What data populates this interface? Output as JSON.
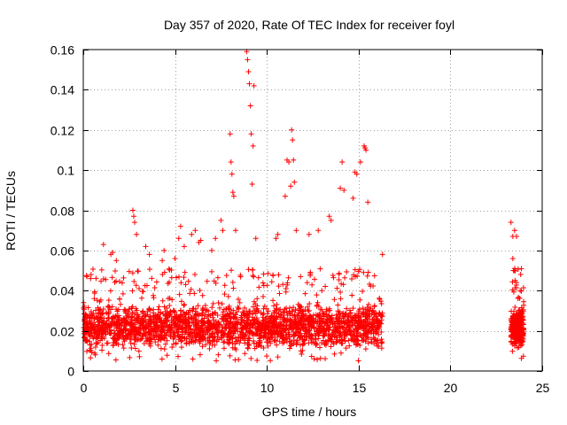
{
  "chart_data": {
    "type": "scatter",
    "title": "Day 357 of 2020, Rate Of TEC Index for receiver foyl",
    "xlabel": "GPS time / hours",
    "ylabel": "ROTI / TECUs",
    "xlim": [
      0,
      25
    ],
    "ylim": [
      0,
      0.16
    ],
    "xticks": [
      0,
      5,
      10,
      15,
      20,
      25
    ],
    "xtick_labels": [
      "0",
      "5",
      "10",
      "15",
      "20",
      "25"
    ],
    "yticks": [
      0,
      0.02,
      0.04,
      0.06,
      0.08,
      0.1,
      0.12,
      0.14,
      0.16
    ],
    "ytick_labels": [
      "0",
      "0.02",
      "0.04",
      "0.06",
      "0.08",
      "0.1",
      "0.12",
      "0.14",
      "0.16"
    ],
    "grid": true,
    "marker": "plus",
    "color": "#ff0000",
    "series": [
      {
        "name": "ROTI",
        "coverage_hours": [
          [
            0,
            16.3
          ],
          [
            23.3,
            24.0
          ]
        ],
        "typical_range": [
          0.005,
          0.045
        ],
        "points": [
          [
            0.2,
            0.047
          ],
          [
            0.4,
            0.046
          ],
          [
            1.1,
            0.063
          ],
          [
            1.5,
            0.058
          ],
          [
            1.6,
            0.059
          ],
          [
            1.8,
            0.055
          ],
          [
            2.7,
            0.08
          ],
          [
            2.75,
            0.077
          ],
          [
            2.8,
            0.074
          ],
          [
            2.9,
            0.068
          ],
          [
            3.4,
            0.062
          ],
          [
            3.6,
            0.058
          ],
          [
            4.3,
            0.055
          ],
          [
            4.4,
            0.06
          ],
          [
            5.0,
            0.056
          ],
          [
            5.2,
            0.066
          ],
          [
            5.3,
            0.072
          ],
          [
            5.5,
            0.062
          ],
          [
            5.9,
            0.068
          ],
          [
            6.1,
            0.07
          ],
          [
            6.3,
            0.064
          ],
          [
            6.4,
            0.065
          ],
          [
            7.0,
            0.06
          ],
          [
            7.2,
            0.066
          ],
          [
            7.5,
            0.075
          ],
          [
            7.6,
            0.07
          ],
          [
            8.0,
            0.118
          ],
          [
            8.05,
            0.104
          ],
          [
            8.1,
            0.098
          ],
          [
            8.15,
            0.089
          ],
          [
            8.2,
            0.087
          ],
          [
            8.3,
            0.07
          ],
          [
            8.9,
            0.159
          ],
          [
            8.95,
            0.155
          ],
          [
            9.0,
            0.149
          ],
          [
            9.05,
            0.143
          ],
          [
            9.1,
            0.132
          ],
          [
            9.15,
            0.118
          ],
          [
            9.2,
            0.093
          ],
          [
            9.25,
            0.112
          ],
          [
            9.3,
            0.142
          ],
          [
            9.4,
            0.066
          ],
          [
            10.5,
            0.066
          ],
          [
            10.6,
            0.068
          ],
          [
            11.0,
            0.087
          ],
          [
            11.1,
            0.105
          ],
          [
            11.2,
            0.104
          ],
          [
            11.3,
            0.092
          ],
          [
            11.35,
            0.12
          ],
          [
            11.4,
            0.115
          ],
          [
            11.45,
            0.105
          ],
          [
            11.5,
            0.094
          ],
          [
            11.6,
            0.07
          ],
          [
            12.3,
            0.068
          ],
          [
            12.8,
            0.07
          ],
          [
            13.4,
            0.077
          ],
          [
            13.5,
            0.075
          ],
          [
            14.0,
            0.091
          ],
          [
            14.1,
            0.104
          ],
          [
            14.2,
            0.09
          ],
          [
            14.7,
            0.086
          ],
          [
            14.8,
            0.099
          ],
          [
            14.9,
            0.098
          ],
          [
            15.1,
            0.104
          ],
          [
            15.3,
            0.112
          ],
          [
            15.35,
            0.111
          ],
          [
            15.4,
            0.11
          ],
          [
            15.5,
            0.084
          ],
          [
            16.3,
            0.058
          ],
          [
            23.3,
            0.074
          ],
          [
            23.4,
            0.067
          ],
          [
            23.5,
            0.07
          ],
          [
            23.6,
            0.067
          ],
          [
            23.4,
            0.056
          ],
          [
            23.5,
            0.051
          ],
          [
            23.6,
            0.044
          ],
          [
            23.8,
            0.04
          ]
        ]
      }
    ]
  }
}
